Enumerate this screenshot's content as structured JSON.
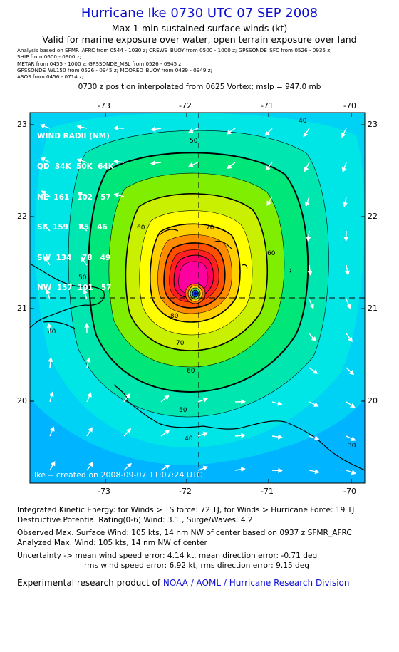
{
  "title": "Hurricane Ike 0730 UTC 07 SEP 2008",
  "subtitle1": "Max 1-min sustained surface winds (kt)",
  "subtitle2": "Valid for marine exposure over water, open terrain exposure over land",
  "analysis_lines": [
    "Analysis based on  SFMR_AFRC from 0544 - 1030 z;  CREWS_BUOY from 0500 - 1000 z;  GPSSONDE_SFC from 0526 - 0935 z;",
    "SHIP from 0600 - 0900 z;",
    "METAR from 0455 - 1000 z;  GPSSONDE_MBL from 0526 - 0945 z;",
    "GPSSONDE_WL150 from 0526 - 0945 z;  MOORED_BUOY from 0439 - 0949 z;",
    "ASOS from 0456 - 0714 z;"
  ],
  "position_note": "0730 z position interpolated from 0625 Vortex; mslp = 947.0 mb",
  "lon_ticks": [
    "-73",
    "-72",
    "-71",
    "-70"
  ],
  "lat_ticks": [
    "23",
    "22",
    "21",
    "20"
  ],
  "wind_radii": {
    "header": "WIND RADII (NM)",
    "columns": [
      "QD",
      "34K",
      "50K",
      "64K"
    ],
    "rows": [
      [
        "NE",
        "161",
        "102",
        "57"
      ],
      [
        "SE",
        "159",
        "85",
        "46"
      ],
      [
        "SW",
        "134",
        "78",
        "49"
      ],
      [
        "NW",
        "157",
        "101",
        "57"
      ]
    ]
  },
  "contour_labels": [
    "50",
    "40",
    "60",
    "70",
    "80",
    "60",
    "50",
    "40",
    "70",
    "40",
    "30",
    "50",
    "60"
  ],
  "credit": "Ike -- created on 2008-09-07 11:07:24 UTC",
  "footer": {
    "ike": "Integrated Kinetic Energy:  for Winds > TS force: 72 TJ,  for Winds > Hurricane Force: 19 TJ",
    "dpr": "Destructive Potential Rating(0-6)   Wind: 3.1 , Surge/Waves: 4.2",
    "observed": "Observed Max. Surface Wind: 105 kts, 14 nm NW of center based on 0937 z SFMR_AFRC",
    "analyzed": "Analyzed Max. Wind: 105 kts, 14 nm NW of center",
    "uncertainty1": "Uncertainty -> mean wind speed error: 4.14 kt,   mean direction error:  -0.71 deg",
    "uncertainty2": "rms wind speed error: 6.92 kt,   rms direction error: 9.15 deg",
    "product_prefix": "Experimental research product of ",
    "product_link": "NOAA / AOML / Hurricane Research Division"
  },
  "colors": {
    "title": "#1010d0",
    "bg_blue": "#00b4ff",
    "cyan": "#00e6e6",
    "green": "#00e678",
    "yellow": "#ffff00",
    "orange": "#ff8c00",
    "red": "#ff2020",
    "magenta": "#ff0080"
  }
}
